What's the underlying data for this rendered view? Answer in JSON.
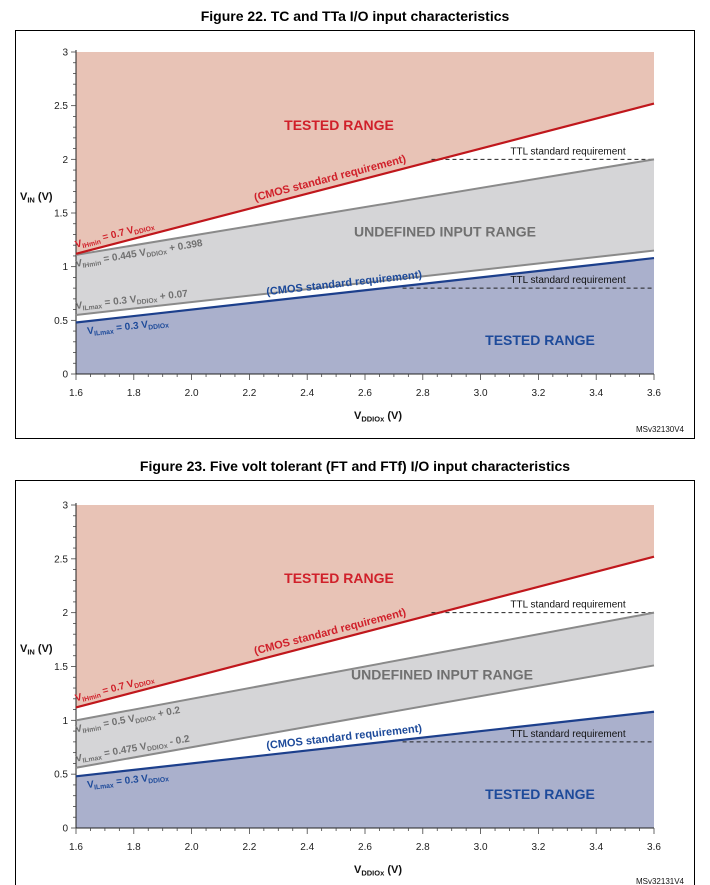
{
  "colors": {
    "upper_region": "#e8c3b6",
    "lower_region": "#aab0cc",
    "undefined_region": "#d5d5d7",
    "vih_line": "#c0171c",
    "vil_line": "#1c3f8c",
    "gray_line": "#8a8a8a",
    "label_red": "#d0202a",
    "label_blue": "#1d4a9a",
    "label_gray": "#707070"
  },
  "chart_data": [
    {
      "type": "area",
      "title": "Figure 22. TC and TTa I/O input characteristics",
      "xlabel": "VDDIOx (V)",
      "ylabel": "VIN (V)",
      "xlim": [
        1.6,
        3.6
      ],
      "ylim": [
        0,
        3
      ],
      "x_ticks": [
        "1.6",
        "1.8",
        "2.0",
        "2.2",
        "2.4",
        "2.6",
        "2.8",
        "3.0",
        "3.2",
        "3.4",
        "3.6"
      ],
      "y_ticks": [
        "0",
        "0.5",
        "1",
        "1.5",
        "2",
        "2.5",
        "3"
      ],
      "series": [
        {
          "name": "VIHmin = 0.7 VDDIOx",
          "role": "vih",
          "x": [
            1.6,
            3.6
          ],
          "y": [
            1.12,
            2.52
          ]
        },
        {
          "name": "VIHmin = 0.445 VDDIOx + 0.398",
          "role": "gray",
          "x": [
            1.6,
            3.6
          ],
          "y": [
            1.11,
            2.0
          ]
        },
        {
          "name": "VILmax = 0.3 VDDIOx + 0.07",
          "role": "gray",
          "x": [
            1.6,
            3.6
          ],
          "y": [
            0.55,
            1.15
          ]
        },
        {
          "name": "VILmax = 0.3 VDDIOx",
          "role": "vil",
          "x": [
            1.6,
            3.6
          ],
          "y": [
            0.48,
            1.08
          ]
        }
      ],
      "ttl_lines": [
        {
          "label": "TTL standard requirement",
          "y": 2.0,
          "x_from": 2.83,
          "x_to": 3.6
        },
        {
          "label": "TTL standard requirement",
          "y": 0.8,
          "x_from": 2.73,
          "x_to": 3.6
        }
      ],
      "labels": {
        "tested_upper": "TESTED RANGE",
        "tested_lower": "TESTED RANGE",
        "undefined": "UNDEFINED INPUT RANGE",
        "cmos_upper": "(CMOS standard requirement)",
        "cmos_lower": "(CMOS standard requirement)",
        "vih_text": "VIHmin = 0.7 VDDIOx",
        "gray_upper_text": "VIHmin = 0.445 VDDIOx + 0.398",
        "gray_lower_text": "VILmax = 0.3 VDDIOx + 0.07",
        "vil_text": "VILmax = 0.3 VDDIOx"
      },
      "code": "MSv32130V4"
    },
    {
      "type": "area",
      "title": "Figure 23. Five volt tolerant (FT and FTf) I/O input characteristics",
      "xlabel": "VDDIOx (V)",
      "ylabel": "VIN (V)",
      "xlim": [
        1.6,
        3.6
      ],
      "ylim": [
        0,
        3
      ],
      "x_ticks": [
        "1.6",
        "1.8",
        "2.0",
        "2.2",
        "2.4",
        "2.6",
        "2.8",
        "3.0",
        "3.2",
        "3.4",
        "3.6"
      ],
      "y_ticks": [
        "0",
        "0.5",
        "1",
        "1.5",
        "2",
        "2.5",
        "3"
      ],
      "series": [
        {
          "name": "VIHmin = 0.7 VDDIOx",
          "role": "vih",
          "x": [
            1.6,
            3.6
          ],
          "y": [
            1.12,
            2.52
          ]
        },
        {
          "name": "VIHmin = 0.5 VDDIOx + 0.2",
          "role": "gray",
          "x": [
            1.6,
            3.6
          ],
          "y": [
            1.0,
            2.0
          ]
        },
        {
          "name": "VILmax = 0.475 VDDIOx - 0.2",
          "role": "gray",
          "x": [
            1.6,
            3.6
          ],
          "y": [
            0.56,
            1.51
          ]
        },
        {
          "name": "VILmax = 0.3 VDDIOx",
          "role": "vil",
          "x": [
            1.6,
            3.6
          ],
          "y": [
            0.48,
            1.08
          ]
        }
      ],
      "ttl_lines": [
        {
          "label": "TTL standard requirement",
          "y": 2.0,
          "x_from": 2.83,
          "x_to": 3.6
        },
        {
          "label": "TTL standard requirement",
          "y": 0.8,
          "x_from": 2.73,
          "x_to": 3.6
        }
      ],
      "labels": {
        "tested_upper": "TESTED RANGE",
        "tested_lower": "TESTED RANGE",
        "undefined": "UNDEFINED INPUT RANGE",
        "cmos_upper": "(CMOS standard requirement)",
        "cmos_lower": "(CMOS standard requirement)",
        "vih_text": "VIHmin = 0.7 VDDIOx",
        "gray_upper_text": "VIHmin = 0.5 VDDIOx + 0.2",
        "gray_lower_text": "VILmax = 0.475 VDDIOx - 0.2",
        "vil_text": "VILmax = 0.3 VDDIOx"
      },
      "code": "MSv32131V4"
    }
  ]
}
